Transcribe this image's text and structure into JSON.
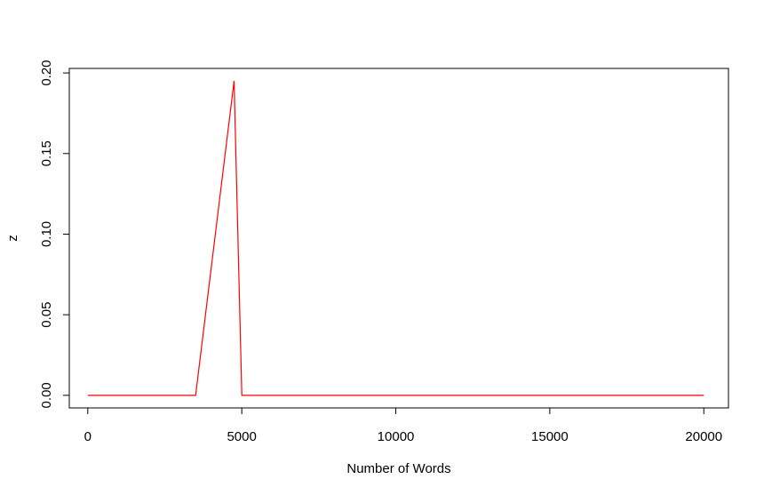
{
  "chart_data": {
    "type": "line",
    "title": "",
    "xlabel": "Number of Words",
    "ylabel": "z",
    "xlim": [
      -600,
      20800
    ],
    "ylim": [
      -0.0078,
      0.2028
    ],
    "x_ticks": [
      0,
      5000,
      10000,
      15000,
      20000
    ],
    "x_tick_labels": [
      "0",
      "5000",
      "10000",
      "15000",
      "20000"
    ],
    "y_ticks": [
      0,
      0.05,
      0.1,
      0.15,
      0.2
    ],
    "y_tick_labels": [
      "0.00",
      "0.05",
      "0.10",
      "0.15",
      "0.20"
    ],
    "grid": false,
    "legend": "none",
    "series": [
      {
        "color": "#ff0000",
        "x": [
          0,
          3500,
          4750,
          5000,
          20000
        ],
        "y": [
          0,
          0,
          0.195,
          0,
          0
        ]
      }
    ]
  }
}
